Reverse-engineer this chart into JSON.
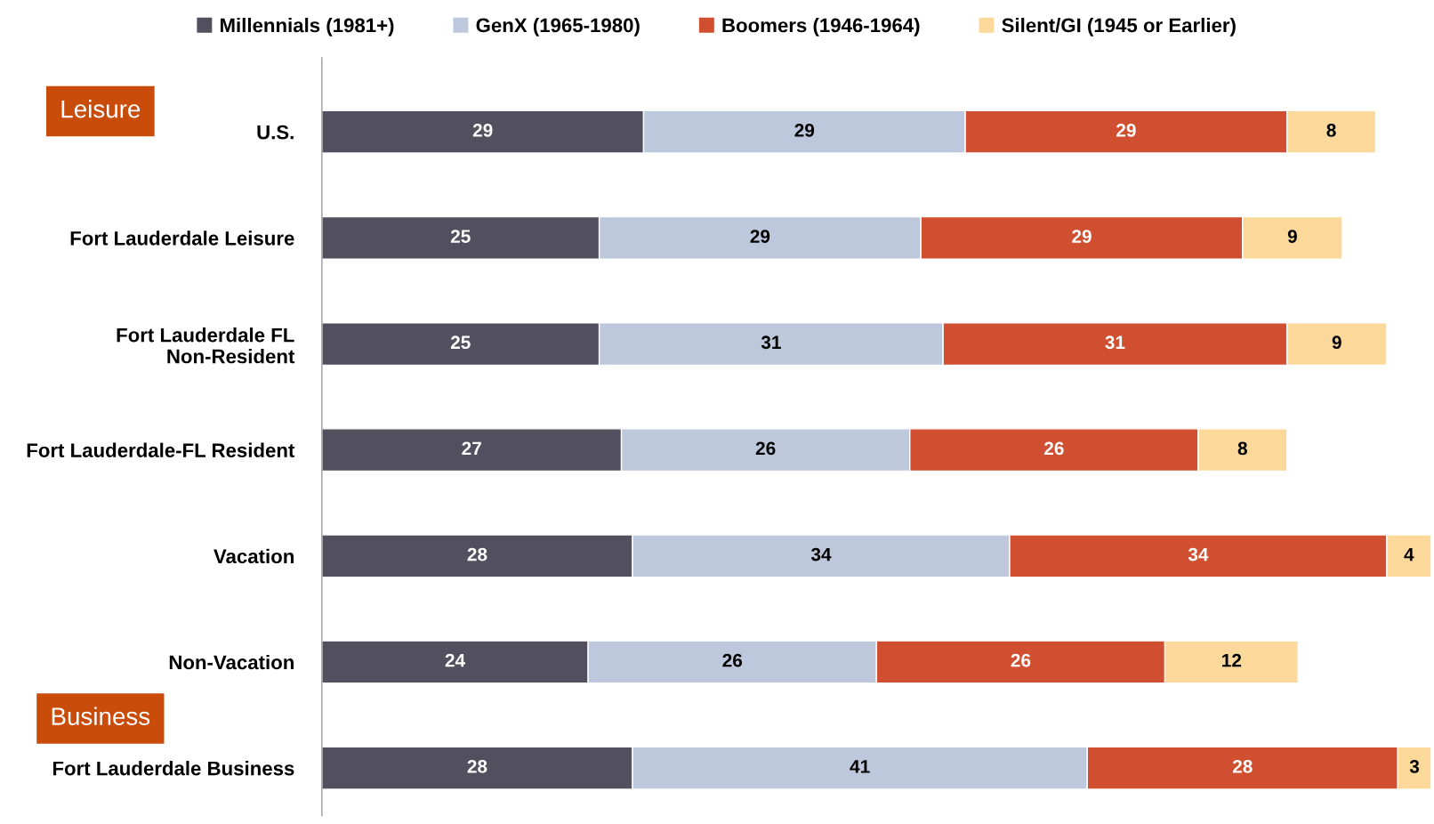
{
  "chart_data": {
    "type": "bar",
    "orientation": "horizontal",
    "stacked": true,
    "data_labels": true,
    "legend": "top",
    "grid": false,
    "tick_labels": "y",
    "xlim": [
      0,
      100
    ],
    "categories": [
      "U.S.",
      "Fort Lauderdale Leisure",
      "Fort Lauderdale FL Non-Resident",
      "Fort Lauderdale-FL Resident",
      "Vacation",
      "Non-Vacation",
      "Fort Lauderdale Business"
    ],
    "series": [
      {
        "name": "Millennials (1981+)",
        "color": "#52505e",
        "values": [
          29,
          25,
          25,
          27,
          28,
          24,
          28
        ]
      },
      {
        "name": "GenX (1965-1980)",
        "color": "#bdc8dc",
        "values": [
          29,
          29,
          31,
          26,
          34,
          26,
          41
        ]
      },
      {
        "name": "Boomers (1946-1964)",
        "color": "#d04f30",
        "values": [
          29,
          29,
          31,
          26,
          34,
          26,
          28
        ]
      },
      {
        "name": "Silent/GI (1945 or Earlier)",
        "color": "#fcd89a",
        "values": [
          8,
          9,
          9,
          8,
          4,
          12,
          3
        ]
      }
    ],
    "annotations": [
      "Leisure",
      "Business"
    ]
  }
}
